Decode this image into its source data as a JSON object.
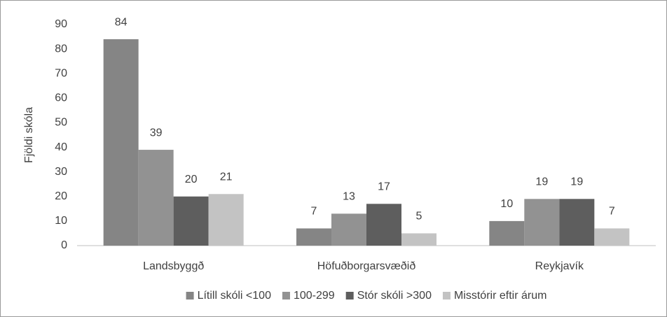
{
  "chart_data": {
    "type": "bar",
    "ylabel": "Fjöldi skóla",
    "categories": [
      "Landsbyggð",
      "Höfuðborgarsvæðið",
      "Reykjavík"
    ],
    "series": [
      {
        "name": "Lítill skóli <100",
        "color": "#858585",
        "values": [
          84,
          7,
          10
        ]
      },
      {
        "name": "100-299",
        "color": "#929292",
        "values": [
          39,
          13,
          19
        ]
      },
      {
        "name": "Stór skóli >300",
        "color": "#5e5e5e",
        "values": [
          20,
          17,
          19
        ]
      },
      {
        "name": "Misstórir eftir árum",
        "color": "#c3c3c3",
        "values": [
          21,
          5,
          7
        ]
      }
    ],
    "ylim": [
      0,
      90
    ],
    "yticks": [
      0,
      10,
      20,
      30,
      40,
      50,
      60,
      70,
      80,
      90
    ],
    "grid": false,
    "legend": "bottom"
  }
}
